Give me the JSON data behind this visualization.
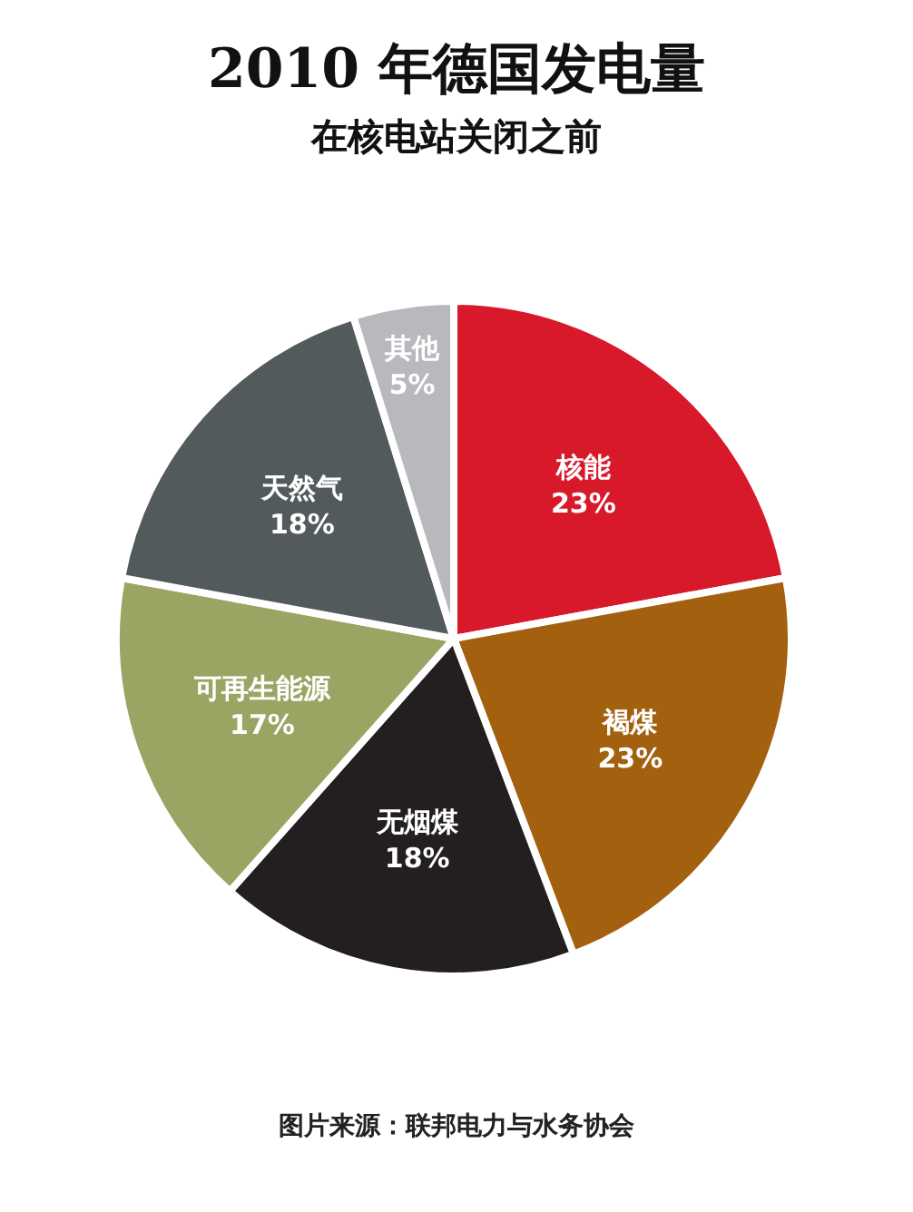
{
  "chart_data": {
    "type": "pie",
    "title": "2010 年德国发电量",
    "subtitle": "在核电站关闭之前",
    "categories": [
      "核能",
      "褐煤",
      "无烟煤",
      "可再生能源",
      "天然气",
      "其他"
    ],
    "values": [
      23,
      23,
      18,
      17,
      18,
      5
    ],
    "value_labels": [
      "23%",
      "23%",
      "18%",
      "17%",
      "18%",
      "5%"
    ],
    "colors": [
      "#d7192a",
      "#a3600e",
      "#231f20",
      "#9aa563",
      "#525a5c",
      "#b7b9bd"
    ],
    "annotations": [
      "图片来源：联邦电力与水务协会"
    ]
  }
}
